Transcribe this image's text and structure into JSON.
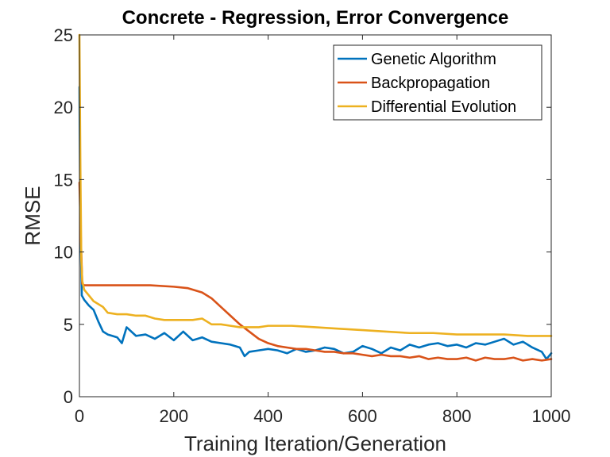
{
  "chart_data": {
    "type": "line",
    "title": "Concrete - Regression, Error Convergence",
    "xlabel": "Training Iteration/Generation",
    "ylabel": "RMSE",
    "xlim": [
      0,
      1000
    ],
    "ylim": [
      0,
      25
    ],
    "xticks": [
      0,
      200,
      400,
      600,
      800,
      1000
    ],
    "yticks": [
      0,
      5,
      10,
      15,
      20,
      25
    ],
    "grid": false,
    "legend_position": "top-right",
    "series": [
      {
        "name": "Genetic Algorithm",
        "color": "#0072BD",
        "x": [
          0,
          2,
          5,
          10,
          20,
          30,
          40,
          50,
          60,
          70,
          80,
          90,
          100,
          120,
          140,
          160,
          180,
          200,
          220,
          240,
          260,
          280,
          300,
          320,
          340,
          350,
          360,
          380,
          400,
          420,
          440,
          460,
          480,
          500,
          520,
          540,
          560,
          580,
          600,
          620,
          640,
          660,
          680,
          700,
          720,
          740,
          760,
          780,
          800,
          820,
          840,
          860,
          880,
          900,
          920,
          940,
          960,
          980,
          990,
          995,
          1000
        ],
        "y": [
          21.4,
          12.0,
          7.0,
          6.7,
          6.3,
          6.0,
          5.2,
          4.5,
          4.3,
          4.2,
          4.1,
          3.7,
          4.8,
          4.2,
          4.3,
          4.0,
          4.4,
          3.9,
          4.5,
          3.9,
          4.1,
          3.8,
          3.7,
          3.6,
          3.4,
          2.8,
          3.1,
          3.2,
          3.3,
          3.2,
          3.0,
          3.3,
          3.1,
          3.2,
          3.4,
          3.3,
          3.0,
          3.1,
          3.5,
          3.3,
          3.0,
          3.4,
          3.2,
          3.6,
          3.4,
          3.6,
          3.7,
          3.5,
          3.6,
          3.4,
          3.7,
          3.6,
          3.8,
          4.0,
          3.6,
          3.8,
          3.4,
          3.1,
          2.6,
          2.8,
          3.0
        ]
      },
      {
        "name": "Backpropagation",
        "color": "#D95319",
        "x": [
          0,
          3,
          6,
          10,
          50,
          100,
          150,
          200,
          230,
          260,
          280,
          300,
          320,
          340,
          360,
          380,
          400,
          420,
          440,
          460,
          480,
          500,
          520,
          540,
          560,
          580,
          600,
          620,
          640,
          660,
          680,
          700,
          720,
          740,
          760,
          780,
          800,
          820,
          840,
          860,
          880,
          900,
          920,
          940,
          960,
          980,
          1000
        ],
        "y": [
          14.8,
          11.0,
          7.8,
          7.7,
          7.7,
          7.7,
          7.7,
          7.6,
          7.5,
          7.2,
          6.8,
          6.2,
          5.6,
          5.0,
          4.5,
          4.0,
          3.7,
          3.5,
          3.4,
          3.3,
          3.3,
          3.2,
          3.1,
          3.1,
          3.0,
          3.0,
          2.9,
          2.8,
          2.9,
          2.8,
          2.8,
          2.7,
          2.8,
          2.6,
          2.7,
          2.6,
          2.6,
          2.7,
          2.5,
          2.7,
          2.6,
          2.6,
          2.7,
          2.5,
          2.6,
          2.5,
          2.6
        ]
      },
      {
        "name": "Differential Evolution",
        "color": "#EDB120",
        "x": [
          0,
          2,
          4,
          6,
          10,
          20,
          30,
          40,
          50,
          60,
          80,
          100,
          120,
          140,
          160,
          180,
          200,
          220,
          240,
          260,
          280,
          300,
          320,
          340,
          360,
          380,
          400,
          450,
          500,
          550,
          600,
          650,
          700,
          750,
          800,
          850,
          900,
          950,
          990,
          1000
        ],
        "y": [
          25.0,
          16.0,
          9.5,
          8.0,
          7.4,
          7.0,
          6.6,
          6.4,
          6.2,
          5.8,
          5.7,
          5.7,
          5.6,
          5.6,
          5.4,
          5.3,
          5.3,
          5.3,
          5.3,
          5.4,
          5.0,
          5.0,
          4.9,
          4.8,
          4.8,
          4.8,
          4.9,
          4.9,
          4.8,
          4.7,
          4.6,
          4.5,
          4.4,
          4.4,
          4.3,
          4.3,
          4.3,
          4.2,
          4.2,
          4.2
        ]
      }
    ]
  }
}
